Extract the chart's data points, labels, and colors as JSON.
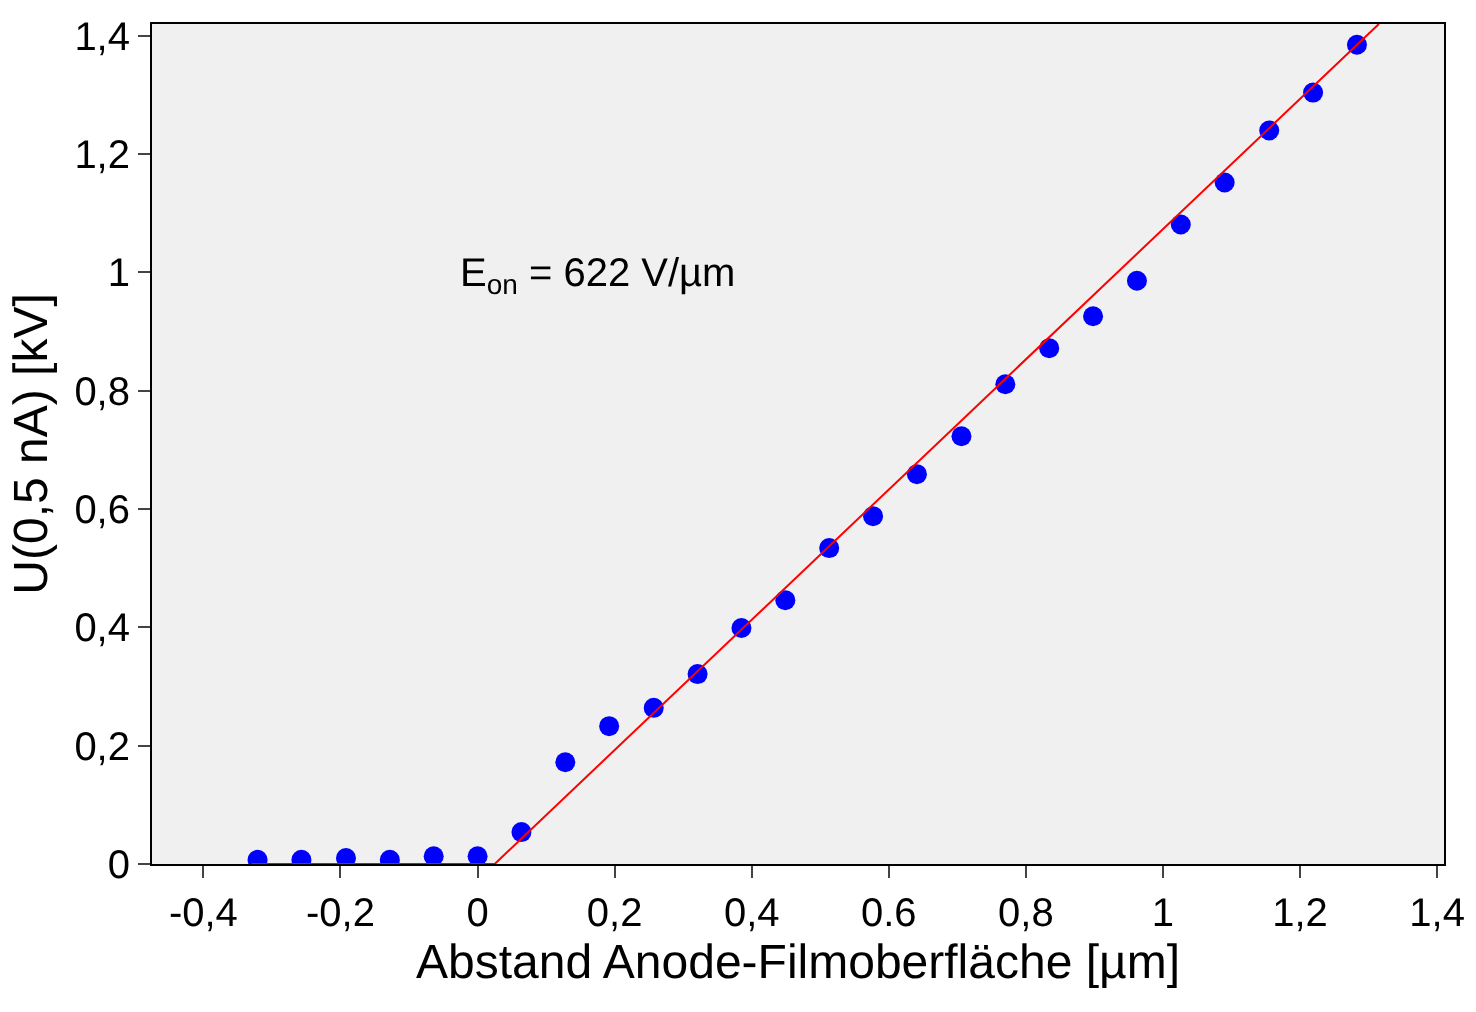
{
  "chart_data": {
    "type": "scatter",
    "xlabel": "Abstand Anode-Filmoberfläche [µm]",
    "ylabel": "U(0,5 nA) [kV]",
    "annotations": [
      "E$_{on}$ = 622 V/µm"
    ],
    "xlim": [
      -0.475,
      1.41
    ],
    "ylim": [
      0,
      1.42
    ],
    "xticks": [
      {
        "value": -0.4,
        "label": "-0,4"
      },
      {
        "value": -0.2,
        "label": "-0,2"
      },
      0,
      {
        "value": 0.2,
        "label": "0,2"
      },
      {
        "value": 0.4,
        "label": "0,4"
      },
      {
        "value": 0.6,
        "label": "0.6"
      },
      {
        "value": 0.8,
        "label": "0,8"
      },
      1,
      {
        "value": 1.2,
        "label": "1,2"
      },
      {
        "value": 1.4,
        "label": "1,4"
      }
    ],
    "yticks": [
      0,
      {
        "value": 0.2,
        "label": "0,2"
      },
      {
        "value": 0.4,
        "label": "0,4"
      },
      {
        "value": 0.6,
        "label": "0,6"
      },
      {
        "value": 0.8,
        "label": "0,8"
      },
      1,
      {
        "value": 1.2,
        "label": "1,2"
      },
      {
        "value": 1.4,
        "label": "1,4"
      }
    ],
    "grid": false,
    "marker": "circle",
    "series": [
      {
        "color": "#0000ff",
        "x": [
          -0.321,
          -0.257,
          -0.192,
          -0.128,
          -0.064,
          0,
          0.064,
          0.128,
          0.192,
          0.257,
          0.321,
          0.385,
          0.449,
          0.513,
          0.577,
          0.641,
          0.706,
          0.77,
          0.834,
          0.898,
          0.962,
          1.026,
          1.09,
          1.155,
          1.219,
          1.283
        ],
        "values": [
          0.007,
          0.007,
          0.01,
          0.007,
          0.013,
          0.013,
          0.054,
          0.172,
          0.233,
          0.264,
          0.321,
          0.399,
          0.446,
          0.534,
          0.588,
          0.659,
          0.723,
          0.811,
          0.872,
          0.926,
          0.986,
          1.081,
          1.152,
          1.24,
          1.304,
          1.385
        ]
      },
      {
        "type": "line",
        "color": "#ff0000",
        "marker": "none",
        "x": [
          -0.33,
          0.025,
          1.315
        ],
        "values": [
          0,
          0,
          1.42
        ]
      }
    ]
  }
}
